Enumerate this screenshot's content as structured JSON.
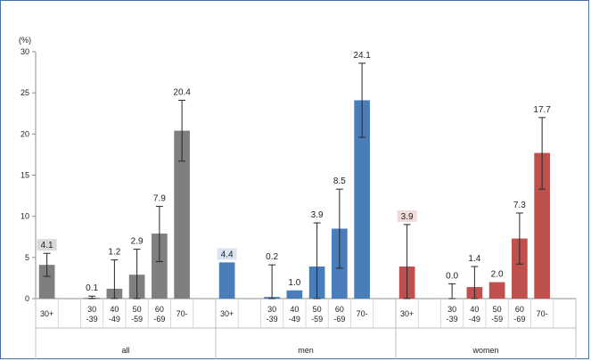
{
  "chart_data": {
    "type": "bar",
    "unit": "(%)",
    "ylim": [
      0,
      30
    ],
    "yticks": [
      "0",
      "5",
      "10",
      "15",
      "20",
      "25",
      "30"
    ],
    "grid": false,
    "groups": [
      {
        "name": "all",
        "color": "#7f7f7f",
        "categories": [
          "30+",
          "30\n-39",
          "40\n-49",
          "50\n-59",
          "60\n-69",
          "70-"
        ],
        "values": [
          4.1,
          0.1,
          1.2,
          2.9,
          7.9,
          20.4
        ],
        "labels": [
          "4.1",
          "0.1",
          "1.2",
          "2.9",
          "7.9",
          "20.4"
        ],
        "ci_low": [
          2.7,
          0.0,
          0.0,
          0.0,
          4.5,
          16.7
        ],
        "ci_high": [
          5.5,
          0.3,
          4.7,
          6.0,
          11.2,
          24.1
        ],
        "highlight_first": true,
        "highlight_color": "#d9d9d9"
      },
      {
        "name": "men",
        "color": "#4a7ebb",
        "categories": [
          "30+",
          "30\n-39",
          "40\n-49",
          "50\n-59",
          "60\n-69",
          "70-"
        ],
        "values": [
          4.4,
          0.2,
          1.0,
          3.9,
          8.5,
          24.1
        ],
        "labels": [
          "4.4",
          "0.2",
          "1.0",
          "3.9",
          "8.5",
          "24.1"
        ],
        "ci_low": [
          null,
          0.0,
          null,
          0.0,
          3.7,
          19.6
        ],
        "ci_high": [
          null,
          4.1,
          null,
          9.2,
          13.3,
          28.6
        ],
        "highlight_first": true,
        "highlight_color": "#dbe5f1"
      },
      {
        "name": "women",
        "color": "#c0504d",
        "categories": [
          "30+",
          "30\n-39",
          "40\n-49",
          "50\n-59",
          "60\n-69",
          "70-"
        ],
        "values": [
          3.9,
          0.0,
          1.4,
          2.0,
          7.3,
          17.7
        ],
        "labels": [
          "3.9",
          "0.0",
          "1.4",
          "2.0",
          "7.3",
          "17.7"
        ],
        "ci_low": [
          0.0,
          0.0,
          0.0,
          null,
          4.2,
          13.3
        ],
        "ci_high": [
          9.0,
          1.8,
          3.9,
          null,
          10.4,
          22.0
        ],
        "highlight_first": true,
        "highlight_color": "#f2dcdb"
      }
    ]
  }
}
